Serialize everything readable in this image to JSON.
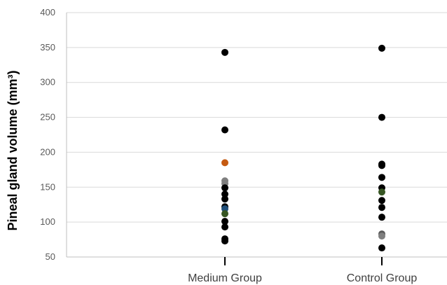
{
  "chart_data": {
    "type": "scatter",
    "title": "",
    "xlabel": "",
    "ylabel": "Pineal gland volume (mm³)",
    "categories": [
      "Medium Group",
      "Control Group"
    ],
    "ylim": [
      50,
      400
    ],
    "yticks": [
      50,
      100,
      150,
      200,
      250,
      300,
      350,
      400
    ],
    "grid": true,
    "legend": "none",
    "series": [
      {
        "points": [
          {
            "category": "Medium Group",
            "y": 343,
            "color": "#000000"
          },
          {
            "category": "Medium Group",
            "y": 232,
            "color": "#000000"
          },
          {
            "category": "Medium Group",
            "y": 185,
            "color": "#c55a11"
          },
          {
            "category": "Medium Group",
            "y": 159,
            "color": "#7f7f7f"
          },
          {
            "category": "Medium Group",
            "y": 155,
            "color": "#7f7f7f"
          },
          {
            "category": "Medium Group",
            "y": 149,
            "color": "#000000"
          },
          {
            "category": "Medium Group",
            "y": 140,
            "color": "#000000"
          },
          {
            "category": "Medium Group",
            "y": 133,
            "color": "#000000"
          },
          {
            "category": "Medium Group",
            "y": 122,
            "color": "#000000"
          },
          {
            "category": "Medium Group",
            "y": 119,
            "color": "#1f4e79"
          },
          {
            "category": "Medium Group",
            "y": 112,
            "color": "#375623"
          },
          {
            "category": "Medium Group",
            "y": 101,
            "color": "#000000"
          },
          {
            "category": "Medium Group",
            "y": 93,
            "color": "#000000"
          },
          {
            "category": "Medium Group",
            "y": 76,
            "color": "#000000"
          },
          {
            "category": "Medium Group",
            "y": 73,
            "color": "#000000"
          },
          {
            "category": "Control Group",
            "y": 349,
            "color": "#000000"
          },
          {
            "category": "Control Group",
            "y": 250,
            "color": "#000000"
          },
          {
            "category": "Control Group",
            "y": 183,
            "color": "#000000"
          },
          {
            "category": "Control Group",
            "y": 181,
            "color": "#000000"
          },
          {
            "category": "Control Group",
            "y": 164,
            "color": "#000000"
          },
          {
            "category": "Control Group",
            "y": 149,
            "color": "#000000"
          },
          {
            "category": "Control Group",
            "y": 143,
            "color": "#375623"
          },
          {
            "category": "Control Group",
            "y": 131,
            "color": "#000000"
          },
          {
            "category": "Control Group",
            "y": 121,
            "color": "#000000"
          },
          {
            "category": "Control Group",
            "y": 107,
            "color": "#000000"
          },
          {
            "category": "Control Group",
            "y": 83,
            "color": "#595959"
          },
          {
            "category": "Control Group",
            "y": 80,
            "color": "#7f7f7f"
          },
          {
            "category": "Control Group",
            "y": 63,
            "color": "#000000"
          }
        ]
      }
    ]
  },
  "colors": {
    "grid": "#d9d9d9",
    "axis": "#bfbfbf",
    "tick_text": "#595959",
    "category_tick": "#000000"
  }
}
